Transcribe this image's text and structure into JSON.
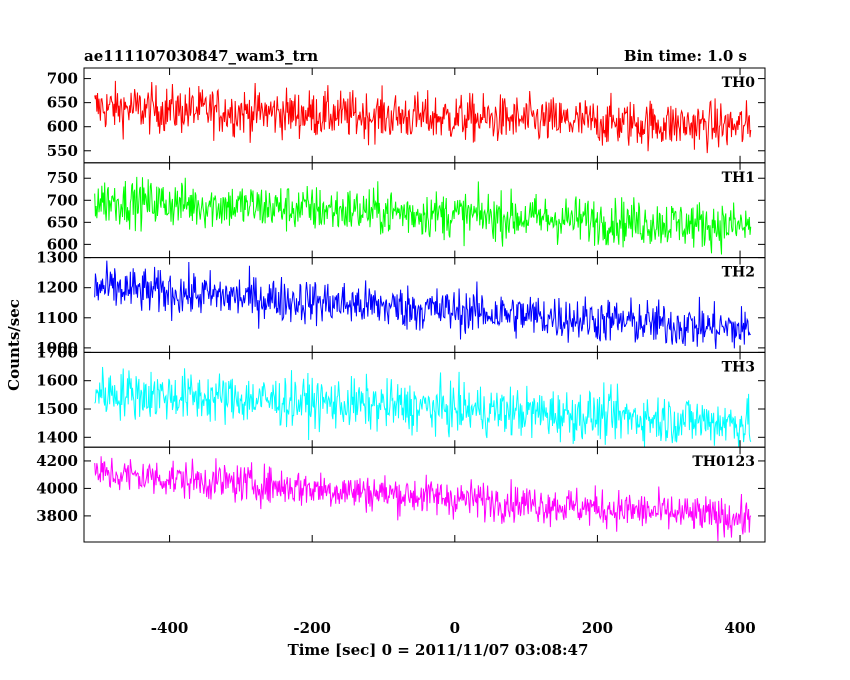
{
  "chart_data": {
    "type": "line",
    "title": "ae111107030847_wam3_trn",
    "bin_time": "Bin time: 1.0 s",
    "xlabel": "Time [sec] 0 = 2011/11/07 03:08:47",
    "ylabel": "Counts/sec",
    "xlim": [
      -520,
      435
    ],
    "x_ticks": [
      -400,
      -200,
      0,
      200,
      400
    ],
    "x_range": [
      -505,
      415
    ],
    "grid": false,
    "panels": [
      {
        "name": "TH0",
        "color": "#ff0000",
        "ylim": [
          525,
          722
        ],
        "y_ticks": [
          550,
          600,
          650,
          700
        ],
        "mean_start": 640,
        "mean_end": 600,
        "noise": 25
      },
      {
        "name": "TH1",
        "color": "#00ff00",
        "ylim": [
          570,
          785
        ],
        "y_ticks": [
          600,
          650,
          700,
          750
        ],
        "mean_start": 700,
        "mean_end": 640,
        "noise": 27
      },
      {
        "name": "TH2",
        "color": "#0000ff",
        "ylim": [
          985,
          1300
        ],
        "y_ticks": [
          1000,
          1100,
          1200,
          1300
        ],
        "mean_start": 1200,
        "mean_end": 1060,
        "noise": 38
      },
      {
        "name": "TH3",
        "color": "#00ffff",
        "ylim": [
          1365,
          1700
        ],
        "y_ticks": [
          1400,
          1500,
          1600,
          1700
        ],
        "mean_start": 1560,
        "mean_end": 1450,
        "noise": 45
      },
      {
        "name": "TH0123",
        "color": "#ff00ff",
        "ylim": [
          3610,
          4300
        ],
        "y_ticks": [
          3800,
          4000,
          4200
        ],
        "mean_start": 4110,
        "mean_end": 3780,
        "noise": 70
      }
    ]
  }
}
